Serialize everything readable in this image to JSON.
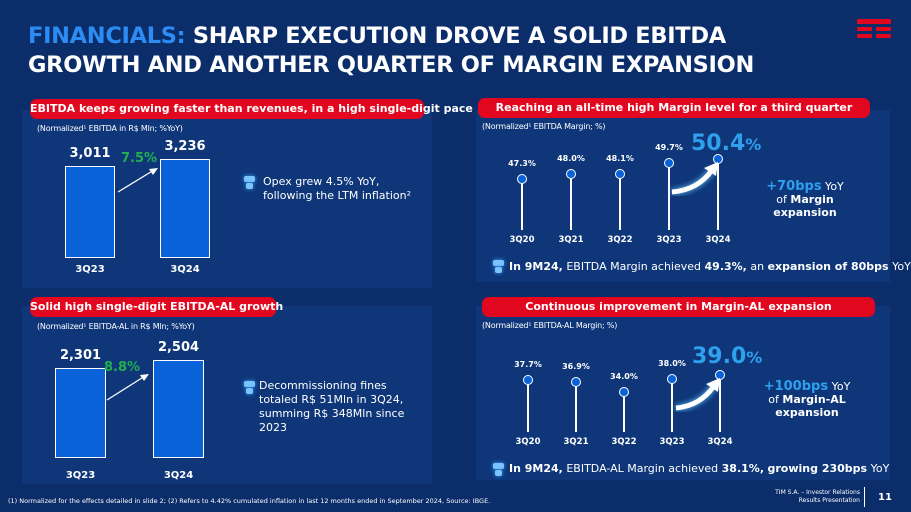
{
  "header": {
    "title_highlight": "FINANCIALS:",
    "title_rest": " SHARP EXECUTION DROVE A SOLID EBITDA",
    "title_line2": "GROWTH AND ANOTHER QUARTER OF MARGIN EXPANSION",
    "logo": "tim-logo"
  },
  "panels": {
    "ebitda": {
      "heading": "EBITDA keeps growing faster than revenues, in a high single-digit pace",
      "subtitle": "(Normalized¹ EBITDA in R$ Mln; %YoY)",
      "growth": "7.5%",
      "note": "Opex grew 4.5% YoY, following the LTM inflation²"
    },
    "ebitda_al": {
      "heading": "Solid high single-digit EBITDA-AL growth",
      "subtitle": "(Normalized¹ EBITDA-AL in R$ Mln; %YoY)",
      "growth": "8.8%",
      "note": "Decommissioning fines totaled R$ 51Mln in 3Q24, summing R$ 348Mln since 2023"
    },
    "margin": {
      "heading": "Reaching an all-time high Margin level for a third quarter",
      "subtitle": "(Normalized¹ EBITDA Margin; %)",
      "highlight_value": "50.4",
      "highlight_unit": "%",
      "side_bps": "+70bps",
      "side_yoy": " YoY",
      "side_of": "of ",
      "side_bold": "Margin",
      "side_end": "expansion",
      "note_b1": "In 9M24,",
      "note_t1": " EBITDA Margin achieved ",
      "note_b2": "49.3%,",
      "note_t2": " an ",
      "note_b3": "expansion of 80bps",
      "note_t3": " YoY"
    },
    "margin_al": {
      "heading": "Continuous improvement in Margin-AL expansion",
      "subtitle": "(Normalized¹ EBITDA-AL Margin; %)",
      "highlight_value": "39.0",
      "highlight_unit": "%",
      "side_bps": "+100bps",
      "side_yoy": " YoY",
      "side_of": "of ",
      "side_bold": "Margin-AL",
      "side_end": "expansion",
      "note_b1": "In 9M24,",
      "note_t1": " EBITDA-AL Margin achieved ",
      "note_b2": "38.1%,",
      "note_t2": " ",
      "note_b3": "growing 230bps",
      "note_t3": " YoY"
    }
  },
  "chart_data": [
    {
      "type": "bar",
      "title": "Normalized EBITDA",
      "categories": [
        "3Q23",
        "3Q24"
      ],
      "values": [
        3011,
        3236
      ],
      "labels": [
        "3,011",
        "3,236"
      ],
      "ylabel": "R$ Mln"
    },
    {
      "type": "bar",
      "title": "Normalized EBITDA-AL",
      "categories": [
        "3Q23",
        "3Q24"
      ],
      "values": [
        2301,
        2504
      ],
      "labels": [
        "2,301",
        "2,504"
      ],
      "ylabel": "R$ Mln"
    },
    {
      "type": "scatter",
      "title": "Normalized EBITDA Margin",
      "categories": [
        "3Q20",
        "3Q21",
        "3Q22",
        "3Q23",
        "3Q24"
      ],
      "values": [
        47.3,
        48.0,
        48.1,
        49.7,
        50.4
      ],
      "labels": [
        "47.3%",
        "48.0%",
        "48.1%",
        "49.7%",
        ""
      ]
    },
    {
      "type": "scatter",
      "title": "Normalized EBITDA-AL Margin",
      "categories": [
        "3Q20",
        "3Q21",
        "3Q22",
        "3Q23",
        "3Q24"
      ],
      "values": [
        37.7,
        36.9,
        34.0,
        38.0,
        39.0
      ],
      "labels": [
        "37.7%",
        "36.9%",
        "34.0%",
        "38.0%",
        ""
      ]
    }
  ],
  "footer": {
    "note1": "(1)   Normalized for the effects detailed in slide 2; (2)    Refers to 4.42% cumulated inflation in last 12 months ended in September 2024, Source: IBGE.",
    "company": "TIM S.A. – Investor Relations",
    "doc": "Results Presentation",
    "page": "11"
  }
}
